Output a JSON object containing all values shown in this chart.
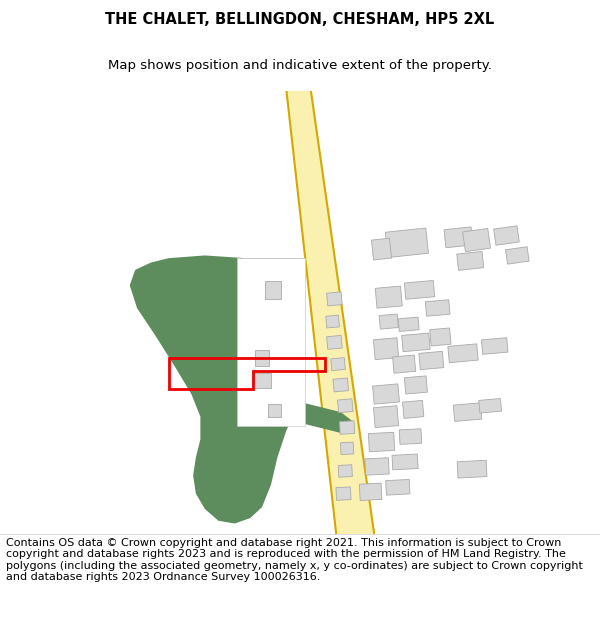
{
  "title": "THE CHALET, BELLINGDON, CHESHAM, HP5 2XL",
  "subtitle": "Map shows position and indicative extent of the property.",
  "footer": "Contains OS data © Crown copyright and database right 2021. This information is subject to Crown copyright and database rights 2023 and is reproduced with the permission of HM Land Registry. The polygons (including the associated geometry, namely x, y co-ordinates) are subject to Crown copyright and database rights 2023 Ordnance Survey 100026316.",
  "bg_color": "#ffffff",
  "green_color": "#5d8c5d",
  "road_fill": "#faf0b0",
  "road_edge": "#d4a800",
  "building_fill": "#d8d8d8",
  "building_edge": "#aaaaaa",
  "red_color": "#ee0000",
  "title_fontsize": 10.5,
  "subtitle_fontsize": 9.5,
  "footer_fontsize": 8.0
}
